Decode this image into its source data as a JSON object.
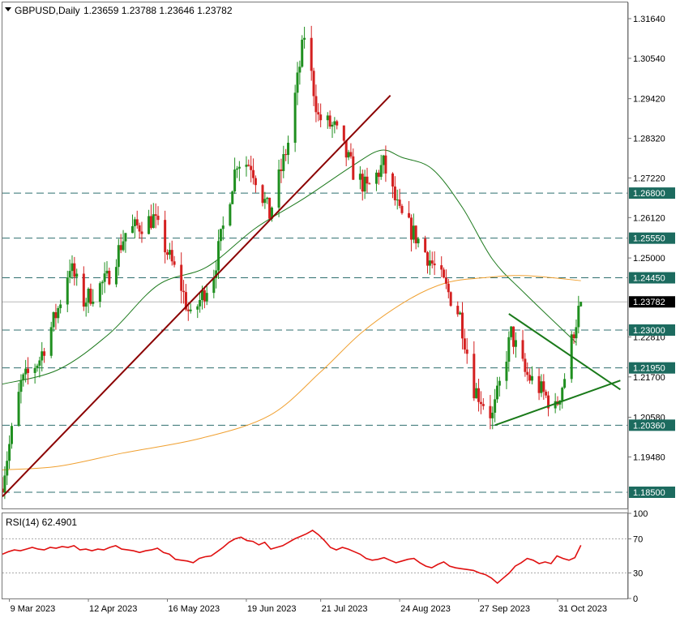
{
  "header": {
    "symbol_line": "GBPUSD,Daily",
    "ohlc": "1.23659 1.23788 1.23646 1.23782"
  },
  "rsi_header": "RSI(14) 62.4901",
  "colors": {
    "bull": "#1f8f1f",
    "bear": "#d42020",
    "ma_fast": "#1e7a1e",
    "ma_slow": "#f0a030",
    "trend_up": "#8b0000",
    "triangle": "#1a7a1a",
    "hline": "#2f6f6f",
    "level_badge_bg": "#1c6b5f",
    "price_badge_bg": "#000000",
    "rsi_line": "#e01010"
  },
  "chart_data": [
    {
      "type": "candlestick",
      "title": "GBPUSD,Daily",
      "ylim": [
        1.1805,
        1.3209
      ],
      "x_ticks": [
        "9 Mar 2023",
        "12 Apr 2023",
        "16 May 2023",
        "19 Jun 2023",
        "21 Jul 2023",
        "24 Aug 2023",
        "27 Sep 2023",
        "31 Oct 2023"
      ],
      "y_ticks": [
        1.3164,
        1.3054,
        1.2942,
        1.2832,
        1.2722,
        1.2612,
        1.25,
        1.2281,
        1.217,
        1.2058,
        1.1948
      ],
      "horizontal_levels": [
        1.268,
        1.2555,
        1.2445,
        1.23,
        1.2195,
        1.2036,
        1.185
      ],
      "level_labels": [
        "1.26800",
        "1.25550",
        "1.24450",
        "1.23000",
        "1.21950",
        "1.20360",
        "1.18500"
      ],
      "current_price": 1.23782,
      "current_price_label": "1.23782",
      "close_path": [
        {
          "date": "2023-03-06",
          "price": 1.188
        },
        {
          "date": "2023-03-14",
          "price": 1.215
        },
        {
          "date": "2023-03-22",
          "price": 1.222
        },
        {
          "date": "2023-03-30",
          "price": 1.236
        },
        {
          "date": "2023-04-04",
          "price": 1.248
        },
        {
          "date": "2023-04-10",
          "price": 1.238
        },
        {
          "date": "2023-04-20",
          "price": 1.244
        },
        {
          "date": "2023-04-28",
          "price": 1.257
        },
        {
          "date": "2023-05-10",
          "price": 1.261
        },
        {
          "date": "2023-05-22",
          "price": 1.242
        },
        {
          "date": "2023-05-26",
          "price": 1.233
        },
        {
          "date": "2023-06-05",
          "price": 1.246
        },
        {
          "date": "2023-06-15",
          "price": 1.277
        },
        {
          "date": "2023-06-21",
          "price": 1.276
        },
        {
          "date": "2023-06-29",
          "price": 1.262
        },
        {
          "date": "2023-07-07",
          "price": 1.282
        },
        {
          "date": "2023-07-14",
          "price": 1.312
        },
        {
          "date": "2023-07-20",
          "price": 1.289
        },
        {
          "date": "2023-07-27",
          "price": 1.286
        },
        {
          "date": "2023-08-04",
          "price": 1.274
        },
        {
          "date": "2023-08-10",
          "price": 1.269
        },
        {
          "date": "2023-08-17",
          "price": 1.276
        },
        {
          "date": "2023-08-24",
          "price": 1.262
        },
        {
          "date": "2023-09-01",
          "price": 1.255
        },
        {
          "date": "2023-09-11",
          "price": 1.244
        },
        {
          "date": "2023-09-19",
          "price": 1.234
        },
        {
          "date": "2023-09-25",
          "price": 1.214
        },
        {
          "date": "2023-10-03",
          "price": 1.206
        },
        {
          "date": "2023-10-11",
          "price": 1.229
        },
        {
          "date": "2023-10-17",
          "price": 1.218
        },
        {
          "date": "2023-10-23",
          "price": 1.214
        },
        {
          "date": "2023-10-30",
          "price": 1.208
        },
        {
          "date": "2023-11-03",
          "price": 1.217
        },
        {
          "date": "2023-11-07",
          "price": 1.23
        },
        {
          "date": "2023-11-10",
          "price": 1.23782
        }
      ],
      "series": [
        {
          "name": "MA fast",
          "points": [
            {
              "date": "2023-03-06",
              "price": 1.215
            },
            {
              "date": "2023-03-30",
              "price": 1.219
            },
            {
              "date": "2023-04-21",
              "price": 1.229
            },
            {
              "date": "2023-05-12",
              "price": 1.2425
            },
            {
              "date": "2023-06-02",
              "price": 1.2475
            },
            {
              "date": "2023-06-23",
              "price": 1.2583
            },
            {
              "date": "2023-07-14",
              "price": 1.2666
            },
            {
              "date": "2023-08-04",
              "price": 1.2757
            },
            {
              "date": "2023-08-16",
              "price": 1.2799
            },
            {
              "date": "2023-08-25",
              "price": 1.2779
            },
            {
              "date": "2023-09-07",
              "price": 1.2747
            },
            {
              "date": "2023-09-20",
              "price": 1.264
            },
            {
              "date": "2023-10-03",
              "price": 1.2496
            },
            {
              "date": "2023-10-17",
              "price": 1.2401
            },
            {
              "date": "2023-11-08",
              "price": 1.2265
            }
          ]
        },
        {
          "name": "MA slow",
          "points": [
            {
              "date": "2023-03-06",
              "price": 1.1912
            },
            {
              "date": "2023-03-30",
              "price": 1.1922
            },
            {
              "date": "2023-04-27",
              "price": 1.1959
            },
            {
              "date": "2023-05-30",
              "price": 1.1999
            },
            {
              "date": "2023-06-29",
              "price": 1.2063
            },
            {
              "date": "2023-07-21",
              "price": 1.2184
            },
            {
              "date": "2023-08-08",
              "price": 1.2295
            },
            {
              "date": "2023-08-28",
              "price": 1.2385
            },
            {
              "date": "2023-09-13",
              "price": 1.2431
            },
            {
              "date": "2023-09-29",
              "price": 1.2445
            },
            {
              "date": "2023-10-17",
              "price": 1.2451
            },
            {
              "date": "2023-11-10",
              "price": 1.2437
            }
          ]
        }
      ],
      "trendlines": [
        {
          "name": "Ascending trendline",
          "from": {
            "date": "2023-03-06",
            "price": 1.1838
          },
          "to": {
            "date": "2023-08-20",
            "price": 1.2951
          }
        },
        {
          "name": "Triangle upper",
          "from": {
            "date": "2023-10-10",
            "price": 1.2345
          },
          "to": {
            "date": "2023-11-27",
            "price": 1.2135
          }
        },
        {
          "name": "Triangle lower",
          "from": {
            "date": "2023-10-04",
            "price": 1.2036
          },
          "to": {
            "date": "2023-11-27",
            "price": 1.216
          }
        }
      ]
    },
    {
      "type": "line",
      "title": "RSI(14) 62.4901",
      "ylim": [
        0,
        100
      ],
      "y_ticks": [
        100,
        70,
        30,
        0
      ],
      "reference_levels": [
        70,
        30
      ],
      "x_range": [
        "2023-03-06",
        "2023-11-10"
      ],
      "values": [
        52,
        55,
        57,
        56,
        58,
        60,
        58,
        57,
        60,
        59,
        61,
        60,
        62,
        57,
        58,
        56,
        58,
        57,
        60,
        62,
        58,
        57,
        56,
        54,
        56,
        57,
        59,
        54,
        52,
        46,
        45,
        44,
        42,
        47,
        49,
        50,
        55,
        60,
        66,
        70,
        72,
        68,
        67,
        63,
        66,
        58,
        60,
        62,
        66,
        70,
        73,
        76,
        80,
        75,
        68,
        60,
        57,
        60,
        58,
        55,
        52,
        47,
        45,
        46,
        48,
        45,
        42,
        44,
        46,
        47,
        42,
        38,
        36,
        40,
        43,
        38,
        36,
        35,
        34,
        33,
        30,
        28,
        24,
        18,
        24,
        30,
        38,
        42,
        47,
        45,
        41,
        43,
        41,
        50,
        47,
        45,
        48,
        62.49
      ]
    }
  ]
}
